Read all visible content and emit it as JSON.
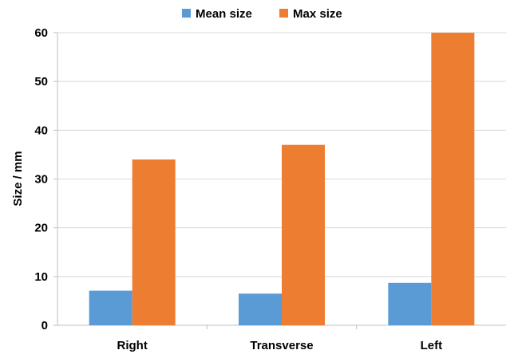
{
  "chart_data": {
    "type": "bar",
    "categories": [
      "Right",
      "Transverse",
      "Left"
    ],
    "series": [
      {
        "name": "Mean size",
        "values": [
          7.1,
          6.5,
          8.7
        ],
        "color": "#5b9bd5"
      },
      {
        "name": "Max size",
        "values": [
          34,
          37,
          60
        ],
        "color": "#ed7d31"
      }
    ],
    "ylabel": "Size / mm",
    "xlabel": "",
    "ylim": [
      0,
      60
    ],
    "yticks": [
      0,
      10,
      20,
      30,
      40,
      50,
      60
    ],
    "grid": true,
    "legend_position": "top"
  }
}
